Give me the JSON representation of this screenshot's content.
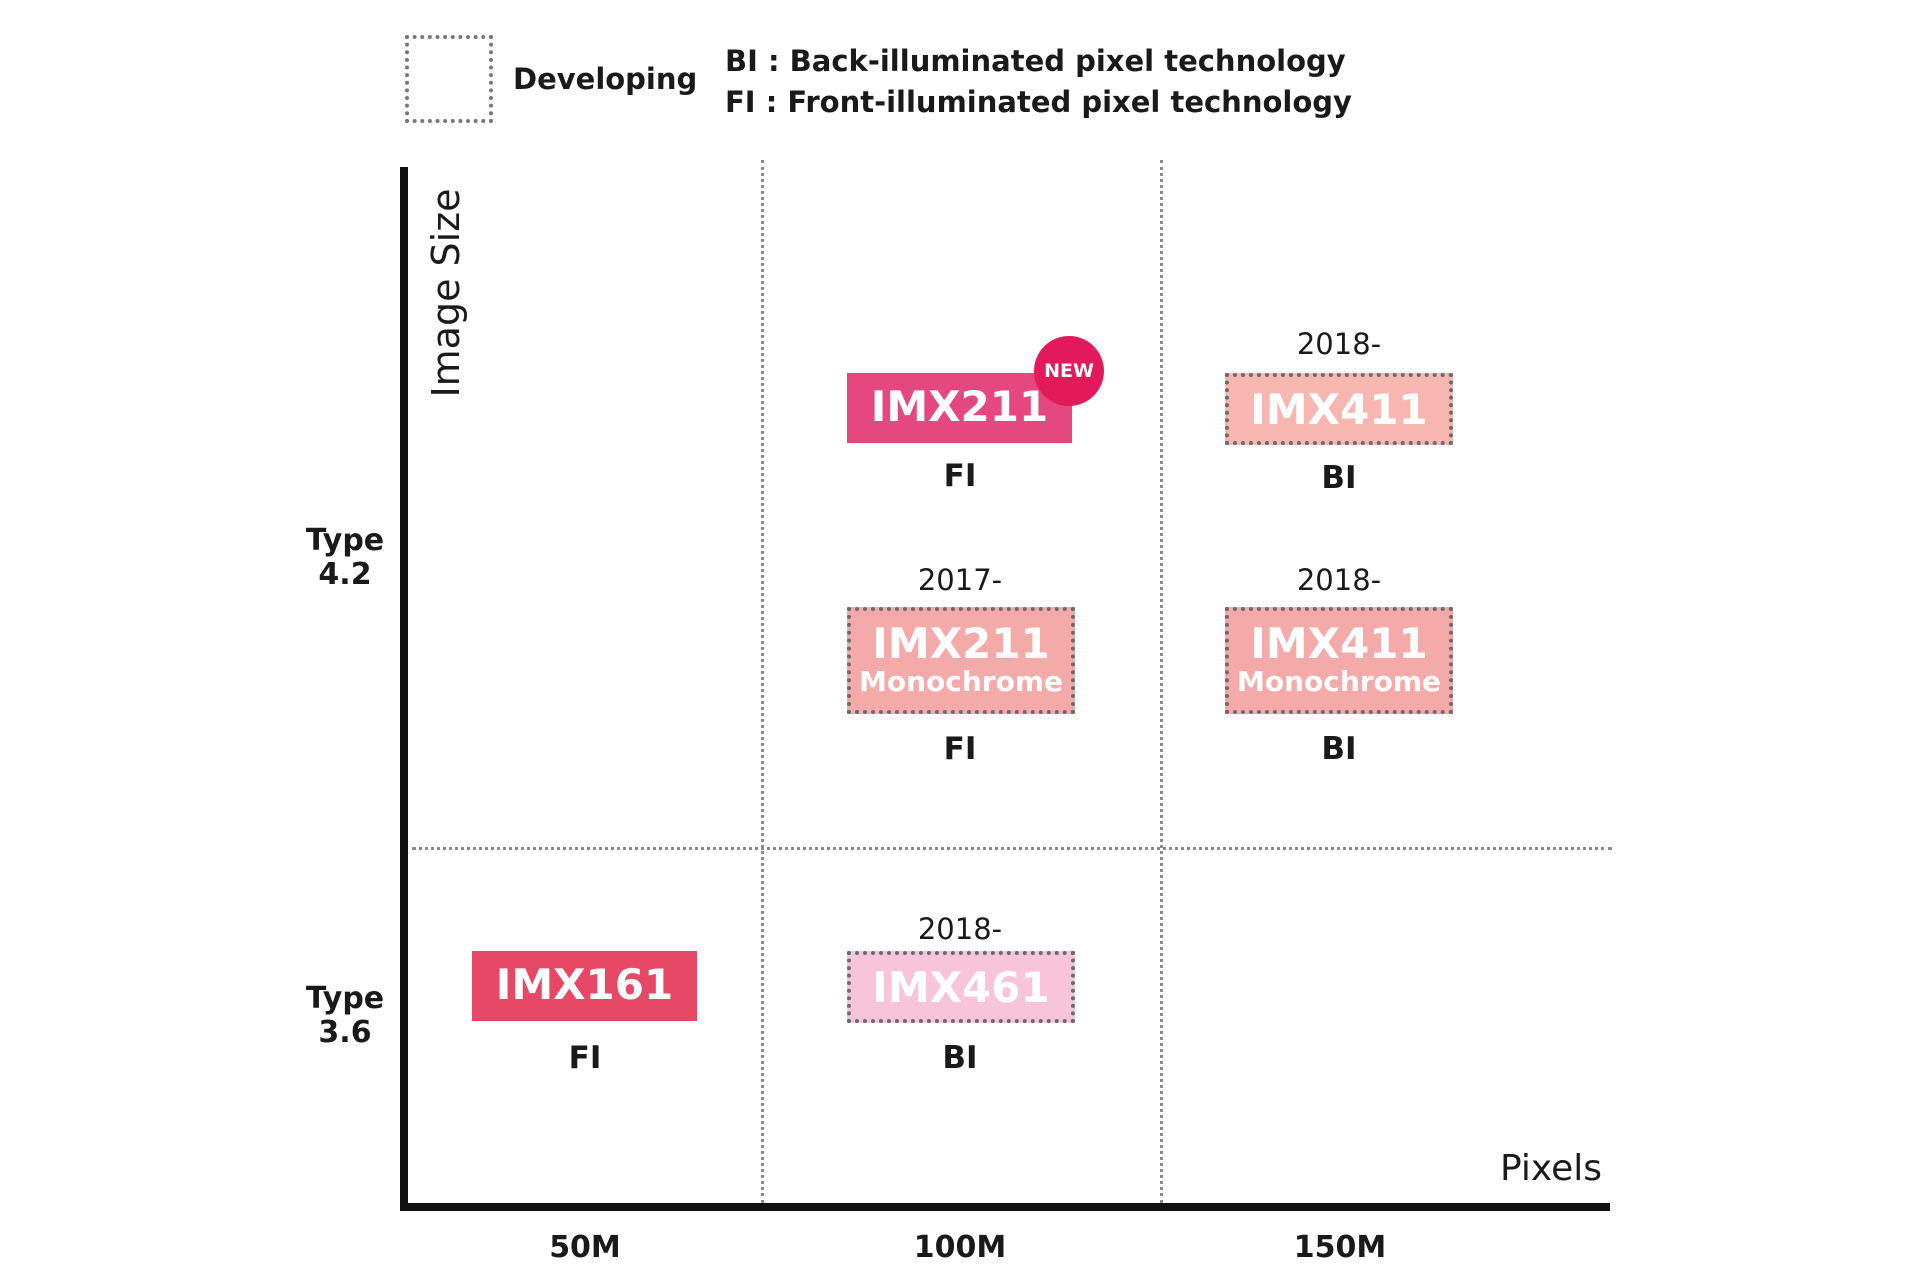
{
  "legend": {
    "developing_label": "Developing",
    "bi_text": "BI : Back-illuminated pixel technology",
    "fi_text": "FI : Front-illuminated pixel technology"
  },
  "axes": {
    "y_label": "Image Size",
    "x_label": "Pixels",
    "y_ticks": [
      "Type 4.2",
      "Type 3.6"
    ],
    "y_tick_lines": [
      [
        "Type",
        "4.2"
      ],
      [
        "Type",
        "3.6"
      ]
    ],
    "x_ticks": [
      "50M",
      "100M",
      "150M"
    ]
  },
  "sensors": [
    {
      "model": "IMX211",
      "sub": "",
      "tech": "FI",
      "year": "",
      "badge": "NEW",
      "status": "available",
      "color": "#e4487e"
    },
    {
      "model": "IMX411",
      "sub": "",
      "tech": "BI",
      "year": "2018-",
      "badge": "",
      "status": "developing",
      "color": "#f7b6b0"
    },
    {
      "model": "IMX211",
      "sub": "Monochrome",
      "tech": "FI",
      "year": "2017-",
      "badge": "",
      "status": "developing",
      "color": "#f4aaa9"
    },
    {
      "model": "IMX411",
      "sub": "Monochrome",
      "tech": "BI",
      "year": "2018-",
      "badge": "",
      "status": "developing",
      "color": "#f4aaa9"
    },
    {
      "model": "IMX161",
      "sub": "",
      "tech": "FI",
      "year": "",
      "badge": "",
      "status": "available",
      "color": "#e64866"
    },
    {
      "model": "IMX461",
      "sub": "",
      "tech": "BI",
      "year": "2018-",
      "badge": "",
      "status": "developing",
      "color": "#f7c4da"
    }
  ]
}
